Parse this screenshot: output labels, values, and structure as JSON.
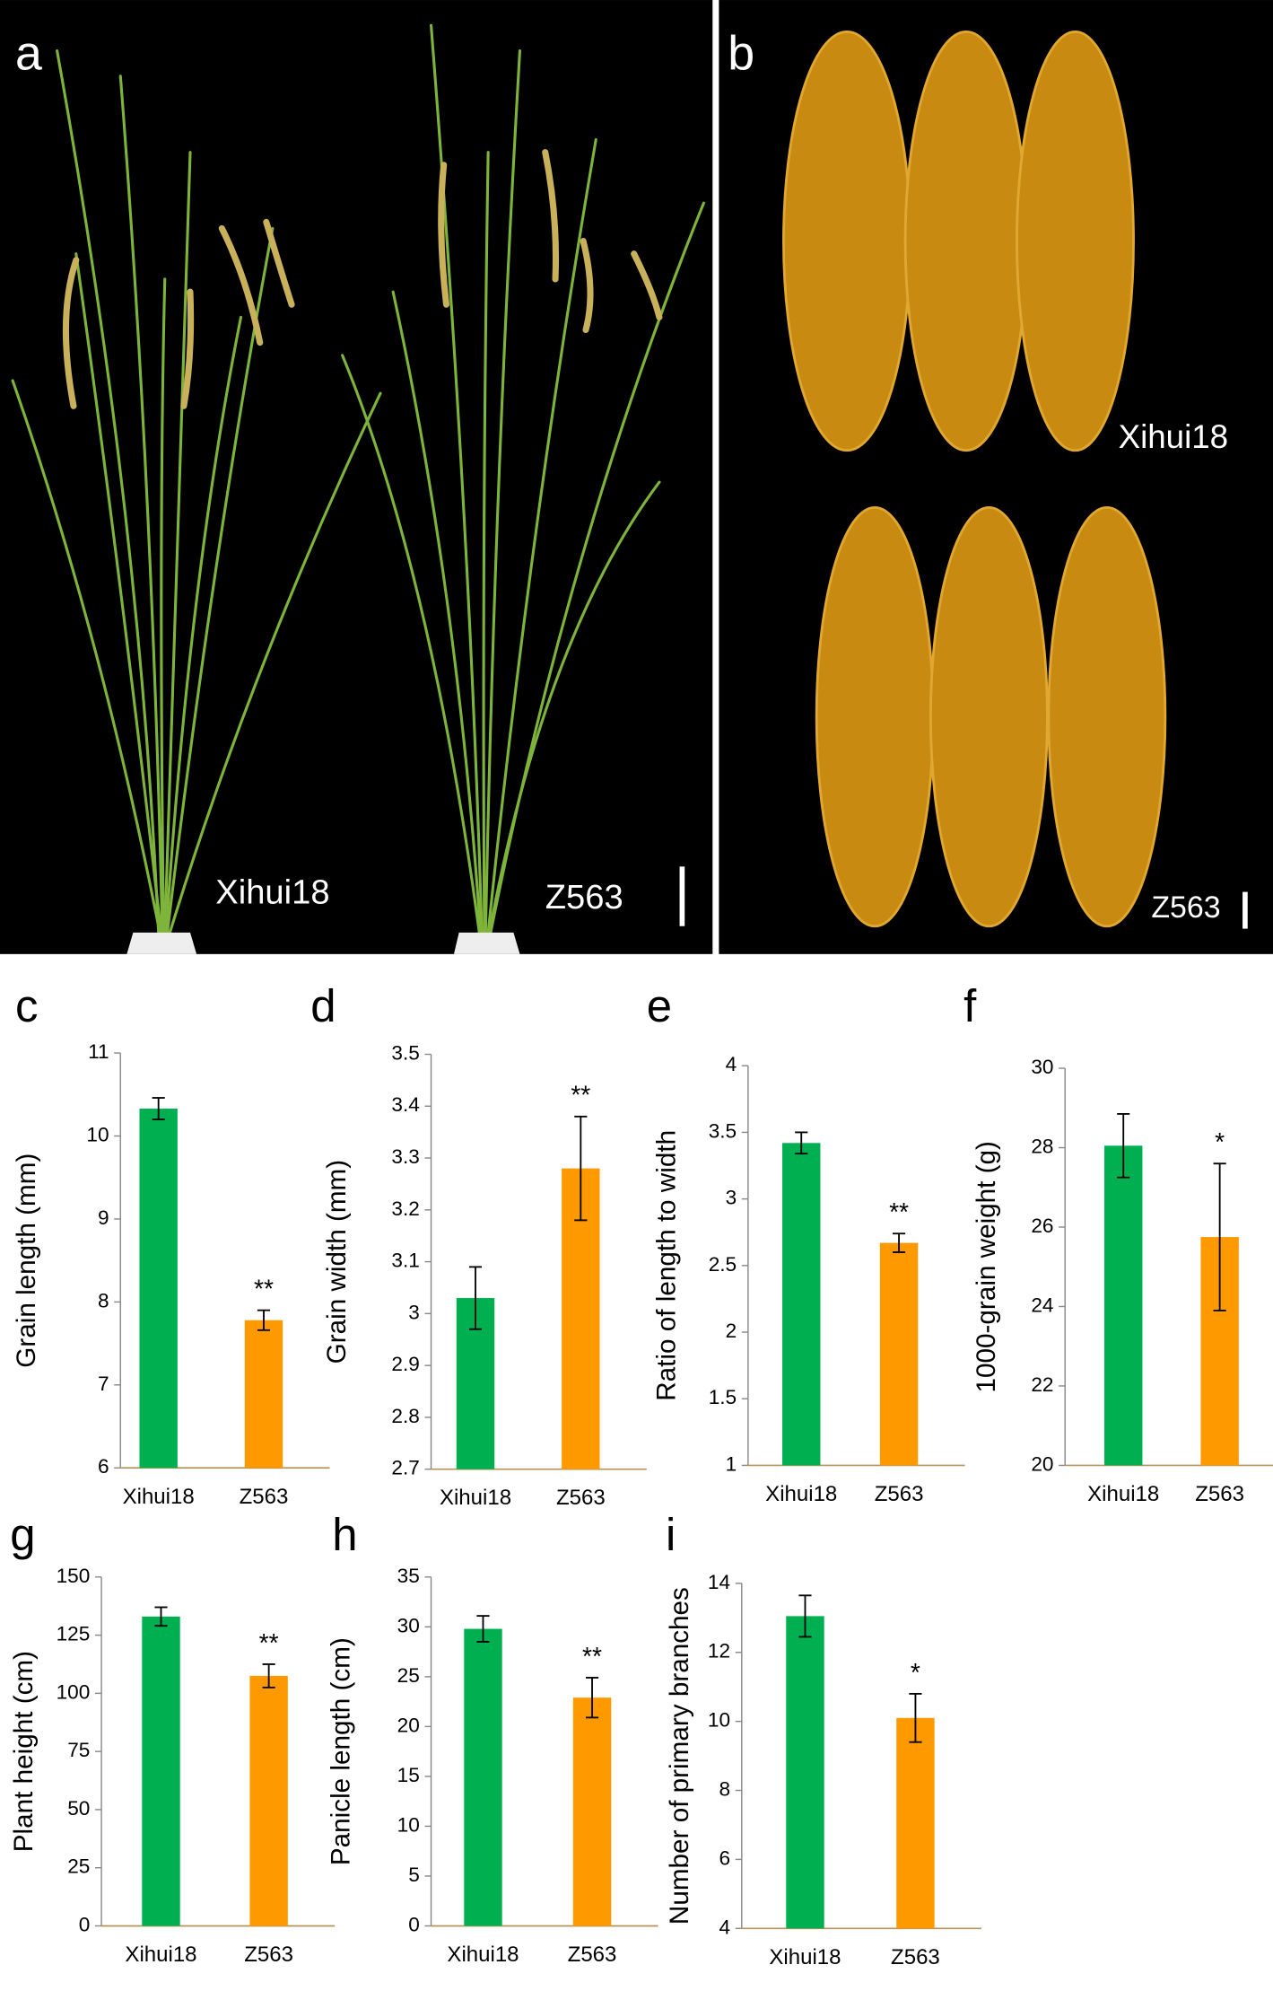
{
  "panels": [
    {
      "label": "a",
      "captions": [
        "Xihui18",
        "Z563"
      ]
    },
    {
      "label": "b",
      "captions": [
        "Xihui18",
        "Z563"
      ]
    }
  ],
  "chart_data": [
    {
      "type": "bar",
      "panel": "c",
      "ylabel": "Grain length (mm)",
      "categories": [
        "Xihui18",
        "Z563"
      ],
      "values": [
        10.33,
        7.78
      ],
      "errors": [
        0.13,
        0.12
      ],
      "significance": [
        null,
        "**"
      ],
      "colors": [
        "#00b050",
        "#ff9900"
      ],
      "ylim": [
        6,
        11
      ],
      "yticks": [
        6,
        7,
        8,
        9,
        10,
        11
      ]
    },
    {
      "type": "bar",
      "panel": "d",
      "ylabel": "Grain width (mm)",
      "categories": [
        "Xihui18",
        "Z563"
      ],
      "values": [
        3.03,
        3.28
      ],
      "errors": [
        0.06,
        0.1
      ],
      "significance": [
        null,
        "**"
      ],
      "colors": [
        "#00b050",
        "#ff9900"
      ],
      "ylim": [
        2.7,
        3.5
      ],
      "yticks": [
        2.7,
        2.8,
        2.9,
        3,
        3.1,
        3.2,
        3.3,
        3.4,
        3.5
      ]
    },
    {
      "type": "bar",
      "panel": "e",
      "ylabel": "Ratio of length to width",
      "categories": [
        "Xihui18",
        "Z563"
      ],
      "values": [
        3.42,
        2.67
      ],
      "errors": [
        0.08,
        0.07
      ],
      "significance": [
        null,
        "**"
      ],
      "colors": [
        "#00b050",
        "#ff9900"
      ],
      "ylim": [
        1,
        4
      ],
      "yticks": [
        1,
        1.5,
        2,
        2.5,
        3,
        3.5,
        4
      ]
    },
    {
      "type": "bar",
      "panel": "f",
      "ylabel": "1000-grain weight (g)",
      "categories": [
        "Xihui18",
        "Z563"
      ],
      "values": [
        28.05,
        25.75
      ],
      "errors": [
        0.8,
        1.85
      ],
      "significance": [
        null,
        "*"
      ],
      "colors": [
        "#00b050",
        "#ff9900"
      ],
      "ylim": [
        20,
        30
      ],
      "yticks": [
        20,
        22,
        24,
        26,
        28,
        30
      ]
    },
    {
      "type": "bar",
      "panel": "g",
      "ylabel": "Plant height (cm)",
      "categories": [
        "Xihui18",
        "Z563"
      ],
      "values": [
        133,
        107.5
      ],
      "errors": [
        4,
        5
      ],
      "significance": [
        null,
        "**"
      ],
      "colors": [
        "#00b050",
        "#ff9900"
      ],
      "ylim": [
        0,
        150
      ],
      "yticks": [
        0,
        25,
        50,
        75,
        100,
        125,
        150
      ]
    },
    {
      "type": "bar",
      "panel": "h",
      "ylabel": "Panicle length (cm)",
      "categories": [
        "Xihui18",
        "Z563"
      ],
      "values": [
        29.8,
        22.9
      ],
      "errors": [
        1.3,
        2
      ],
      "significance": [
        null,
        "**"
      ],
      "colors": [
        "#00b050",
        "#ff9900"
      ],
      "ylim": [
        0,
        35
      ],
      "yticks": [
        0,
        5,
        10,
        15,
        20,
        25,
        30,
        35
      ]
    },
    {
      "type": "bar",
      "panel": "i",
      "ylabel": "Number of primary branches",
      "categories": [
        "Xihui18",
        "Z563"
      ],
      "values": [
        13.05,
        10.1
      ],
      "errors": [
        0.6,
        0.7
      ],
      "significance": [
        null,
        "*"
      ],
      "colors": [
        "#00b050",
        "#ff9900"
      ],
      "ylim": [
        4,
        14
      ],
      "yticks": [
        4,
        6,
        8,
        10,
        12,
        14
      ]
    }
  ]
}
